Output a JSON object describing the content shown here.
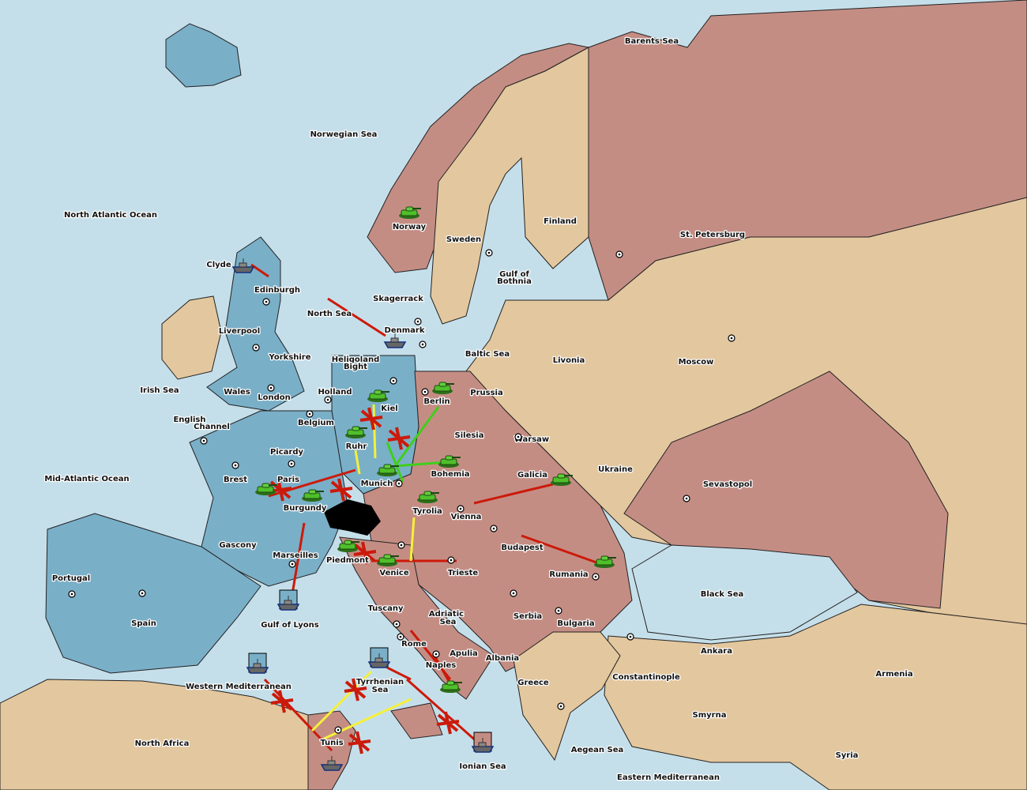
{
  "colors": {
    "sea": "#c5dfea",
    "blue_power": "#7aafc8",
    "pink_power": "#c48d84",
    "neutral": "#e3c79e",
    "move": "#cc1a0a",
    "support": "#f5f03a",
    "support_alt": "#3fcf1a",
    "dislodged": "#000000"
  },
  "labels": [
    "Barents Sea",
    "Norwegian Sea",
    "North Atlantic Ocean",
    "Norway",
    "Sweden",
    "Finland",
    "St. Petersburg",
    "Clyde",
    "Edinburgh",
    "Gulf of",
    "Bothnia",
    "Skagerrack",
    "North Sea",
    "Denmark",
    "Liverpool",
    "Yorkshire",
    "Baltic Sea",
    "Livonia",
    "Moscow",
    "Heligoland",
    "Bight",
    "Irish Sea",
    "Wales",
    "London",
    "Holland",
    "Prussia",
    "Kiel",
    "Berlin",
    "English",
    "Channel",
    "Belgium",
    "Silesia",
    "Warsaw",
    "Picardy",
    "Ruhr",
    "Ukraine",
    "Brest",
    "Paris",
    "Mid-Atlantic Ocean",
    "Munich",
    "Bohemia",
    "Galicia",
    "Sevastopol",
    "Burgundy",
    "Tyrolia",
    "Vienna",
    "Gascony",
    "Budapest",
    "Marseilles",
    "Piedmont",
    "Venice",
    "Trieste",
    "Rumania",
    "Portugal",
    "Black Sea",
    "Tuscany",
    "Adriatic",
    "Sea",
    "Serbia",
    "Bulgaria",
    "Spain",
    "Gulf of Lyons",
    "Rome",
    "Apulia",
    "Ankara",
    "Albania",
    "Naples",
    "Constantinople",
    "Armenia",
    "Greece",
    "Tyrrhenian",
    "Sea",
    "Western Mediterranean",
    "Smyrna",
    "North Africa",
    "Tunis",
    "Ionian Sea",
    "Aegean Sea",
    "Syria",
    "Eastern Mediterranean"
  ],
  "units": [
    {
      "type": "army",
      "location": "Norway"
    },
    {
      "type": "fleet",
      "location": "Clyde"
    },
    {
      "type": "fleet",
      "location": "Denmark"
    },
    {
      "type": "army",
      "location": "Berlin"
    },
    {
      "type": "army",
      "location": "Kiel"
    },
    {
      "type": "army",
      "location": "Ruhr"
    },
    {
      "type": "army",
      "location": "Munich"
    },
    {
      "type": "army",
      "location": "Bohemia"
    },
    {
      "type": "army",
      "location": "Tyrolia"
    },
    {
      "type": "army",
      "location": "Galicia"
    },
    {
      "type": "army",
      "location": "Paris"
    },
    {
      "type": "army",
      "location": "Burgundy"
    },
    {
      "type": "army",
      "location": "Piedmont"
    },
    {
      "type": "army",
      "location": "Venice"
    },
    {
      "type": "army",
      "location": "Rumania"
    },
    {
      "type": "fleet",
      "location": "Gulf of Lyons"
    },
    {
      "type": "fleet",
      "location": "Western Mediterranean"
    },
    {
      "type": "fleet",
      "location": "Tyrrhenian Sea"
    },
    {
      "type": "army",
      "location": "Naples"
    },
    {
      "type": "fleet",
      "location": "Tunis"
    },
    {
      "type": "fleet",
      "location": "Ionian Sea"
    }
  ]
}
